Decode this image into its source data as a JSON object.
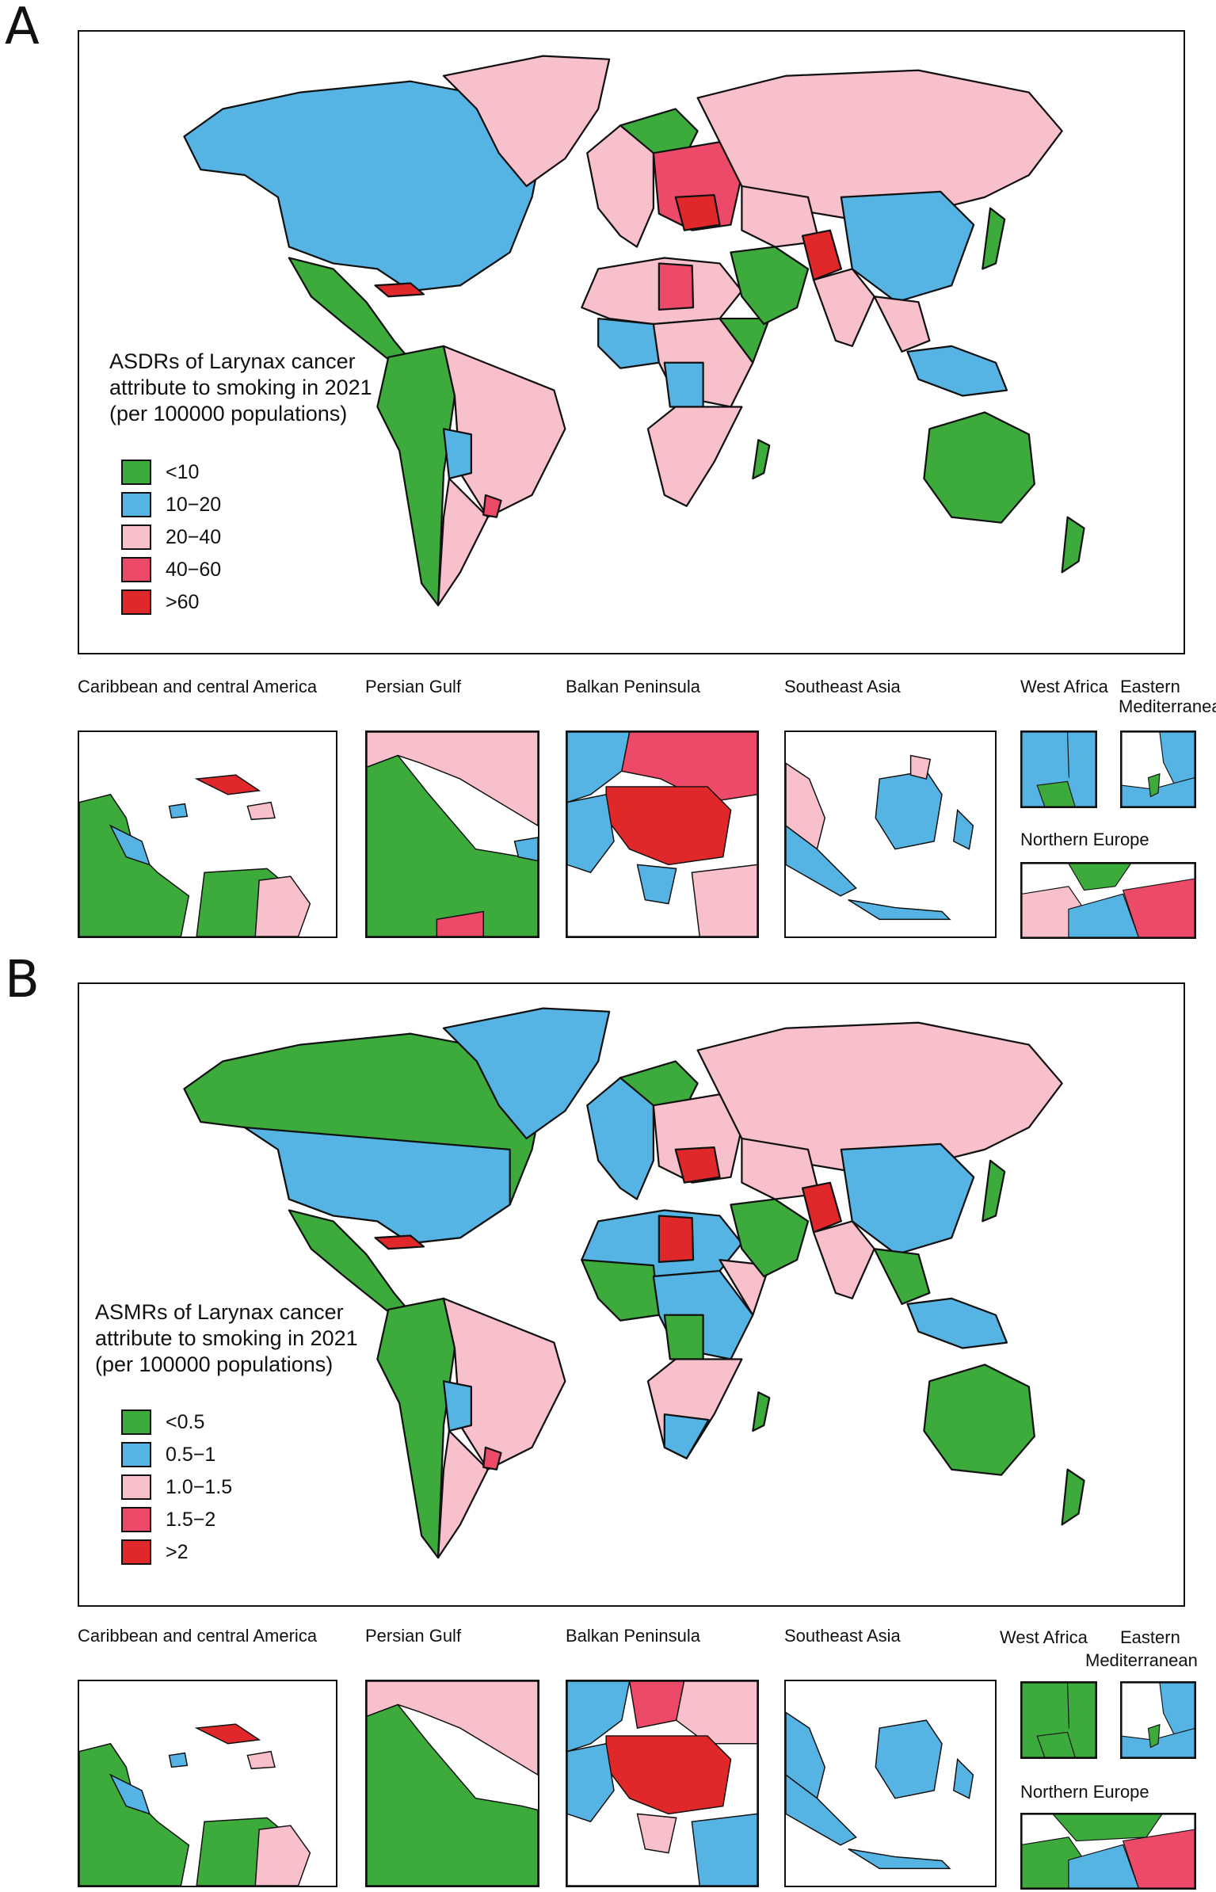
{
  "colors": {
    "green": "#3cab3c",
    "blue": "#55b4e4",
    "pink": "#f7c0cb",
    "rose": "#ec4a68",
    "red": "#e0272a",
    "white": "#ffffff",
    "border": "#111111"
  },
  "panels": [
    {
      "letter": "A",
      "legend": {
        "title_line1": "ASDRs of Larynax cancer",
        "title_line2": "attribute to smoking in 2021",
        "title_line3": "(per 100000 populations)",
        "items": [
          "<10",
          "10−20",
          "20−40",
          "40−60",
          ">60"
        ]
      },
      "insets": {
        "caribbean": "Caribbean and central America",
        "persian_gulf": "Persian Gulf",
        "balkan": "Balkan Peninsula",
        "southeast_asia": "Southeast Asia",
        "west_africa": "West Africa",
        "eastern_med_line1": "Eastern",
        "eastern_med_line2": "Mediterranean",
        "northern_europe": "Northern Europe"
      }
    },
    {
      "letter": "B",
      "legend": {
        "title_line1": "ASMRs of Larynax cancer",
        "title_line2": "attribute to smoking in 2021",
        "title_line3": "(per 100000 populations)",
        "items": [
          "<0.5",
          "0.5−1",
          "1.0−1.5",
          "1.5−2",
          ">2"
        ]
      },
      "insets": {
        "caribbean": "Caribbean and central America",
        "persian_gulf": "Persian Gulf",
        "balkan": "Balkan Peninsula",
        "southeast_asia": "Southeast Asia",
        "west_africa": "West Africa",
        "eastern_med_line1": "Eastern",
        "eastern_med_line2": "Mediterranean",
        "northern_europe": "Northern Europe"
      }
    }
  ]
}
